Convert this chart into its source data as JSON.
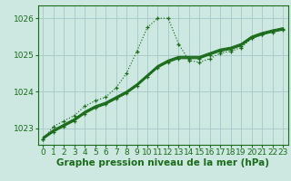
{
  "background_color": "#cce8e0",
  "plot_bg_color": "#cce8e0",
  "grid_color": "#aacccc",
  "line_color": "#1a6b1a",
  "xlabel": "Graphe pression niveau de la mer (hPa)",
  "xlabel_fontsize": 7.5,
  "tick_fontsize": 6.5,
  "ylim": [
    1022.55,
    1026.35
  ],
  "yticks": [
    1023,
    1024,
    1025,
    1026
  ],
  "xlim": [
    -0.5,
    23.5
  ],
  "xticks": [
    0,
    1,
    2,
    3,
    4,
    5,
    6,
    7,
    8,
    9,
    10,
    11,
    12,
    13,
    14,
    15,
    16,
    17,
    18,
    19,
    20,
    21,
    22,
    23
  ],
  "series": [
    {
      "x": [
        0,
        1,
        2,
        3,
        4,
        5,
        6,
        7,
        8,
        9,
        10,
        11,
        12,
        13,
        14,
        15,
        16,
        17,
        18,
        19,
        20,
        21,
        22,
        23
      ],
      "y": [
        1022.7,
        1023.05,
        1023.2,
        1023.35,
        1023.6,
        1023.75,
        1023.85,
        1024.1,
        1024.5,
        1025.1,
        1025.75,
        1026.0,
        1026.0,
        1025.3,
        1024.85,
        1024.8,
        1024.9,
        1025.05,
        1025.1,
        1025.2,
        1025.45,
        1025.55,
        1025.65,
        1025.7
      ],
      "style": "dotted",
      "marker": "+"
    },
    {
      "x": [
        0,
        1,
        2,
        3,
        4,
        5,
        6,
        7,
        8,
        9,
        10,
        11,
        12,
        13,
        14,
        15,
        16,
        17,
        18,
        19,
        20,
        21,
        22,
        23
      ],
      "y": [
        1022.7,
        1022.9,
        1023.05,
        1023.2,
        1023.4,
        1023.55,
        1023.65,
        1023.8,
        1023.95,
        1024.15,
        1024.4,
        1024.65,
        1024.8,
        1024.9,
        1024.9,
        1024.9,
        1025.0,
        1025.1,
        1025.15,
        1025.25,
        1025.45,
        1025.55,
        1025.62,
        1025.68
      ],
      "style": "solid",
      "marker": "+"
    },
    {
      "x": [
        0,
        1,
        2,
        3,
        4,
        5,
        6,
        7,
        8,
        9,
        10,
        11,
        12,
        13,
        14,
        15,
        16,
        17,
        18,
        19,
        20,
        21,
        22,
        23
      ],
      "y": [
        1022.72,
        1022.92,
        1023.07,
        1023.22,
        1023.42,
        1023.57,
        1023.67,
        1023.82,
        1023.97,
        1024.17,
        1024.42,
        1024.67,
        1024.82,
        1024.92,
        1024.92,
        1024.92,
        1025.02,
        1025.12,
        1025.17,
        1025.27,
        1025.47,
        1025.57,
        1025.64,
        1025.7
      ],
      "style": "solid",
      "marker": null
    },
    {
      "x": [
        0,
        1,
        2,
        3,
        4,
        5,
        6,
        7,
        8,
        9,
        10,
        11,
        12,
        13,
        14,
        15,
        16,
        17,
        18,
        19,
        20,
        21,
        22,
        23
      ],
      "y": [
        1022.74,
        1022.94,
        1023.09,
        1023.24,
        1023.44,
        1023.59,
        1023.69,
        1023.84,
        1023.99,
        1024.19,
        1024.44,
        1024.69,
        1024.84,
        1024.94,
        1024.94,
        1024.94,
        1025.04,
        1025.14,
        1025.19,
        1025.29,
        1025.49,
        1025.59,
        1025.66,
        1025.72
      ],
      "style": "solid",
      "marker": null
    },
    {
      "x": [
        0,
        1,
        2,
        3,
        4,
        5,
        6,
        7,
        8,
        9,
        10,
        11,
        12,
        13,
        14,
        15,
        16,
        17,
        18,
        19,
        20,
        21,
        22,
        23
      ],
      "y": [
        1022.76,
        1022.96,
        1023.11,
        1023.26,
        1023.46,
        1023.61,
        1023.71,
        1023.86,
        1024.01,
        1024.21,
        1024.46,
        1024.71,
        1024.86,
        1024.96,
        1024.96,
        1024.96,
        1025.06,
        1025.16,
        1025.21,
        1025.31,
        1025.51,
        1025.61,
        1025.68,
        1025.74
      ],
      "style": "solid",
      "marker": null
    }
  ]
}
